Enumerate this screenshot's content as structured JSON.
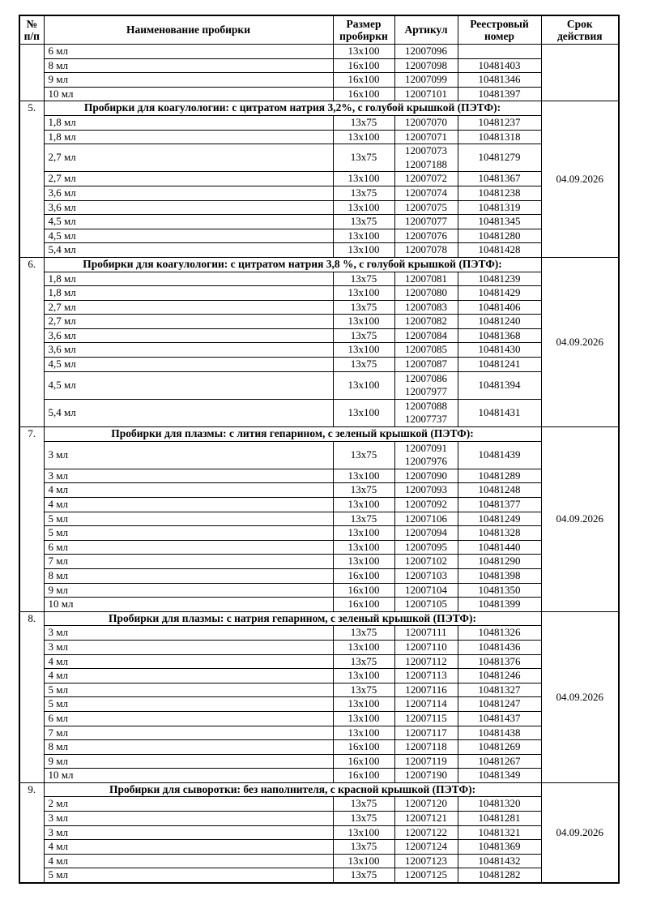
{
  "colors": {
    "background": "#ffffff",
    "text": "#000000",
    "border": "#000000"
  },
  "table": {
    "columns": [
      {
        "key": "num",
        "label": "№\nп/п"
      },
      {
        "key": "name",
        "label": "Наименование пробирки"
      },
      {
        "key": "size",
        "label": "Размер\nпробирки"
      },
      {
        "key": "article",
        "label": "Артикул"
      },
      {
        "key": "reg",
        "label": "Реестровый\nномер"
      },
      {
        "key": "validity",
        "label": "Срок\nдействия"
      }
    ],
    "sections": [
      {
        "number": "",
        "title": null,
        "validity": "",
        "rows": [
          {
            "name": "6 мл",
            "size": "13x100",
            "articles": [
              "12007096"
            ],
            "reg": ""
          },
          {
            "name": "8 мл",
            "size": "16x100",
            "articles": [
              "12007098"
            ],
            "reg": "10481403"
          },
          {
            "name": "9 мл",
            "size": "16x100",
            "articles": [
              "12007099"
            ],
            "reg": "10481346"
          },
          {
            "name": "10 мл",
            "size": "16x100",
            "articles": [
              "12007101"
            ],
            "reg": "10481397"
          }
        ]
      },
      {
        "number": "5.",
        "title": "Пробирки для коагулологии: с цитратом натрия 3,2%, с голубой крышкой (ПЭТФ):",
        "validity": "04.09.2026",
        "rows": [
          {
            "name": "1,8 мл",
            "size": "13x75",
            "articles": [
              "12007070"
            ],
            "reg": "10481237"
          },
          {
            "name": "1,8 мл",
            "size": "13x100",
            "articles": [
              "12007071"
            ],
            "reg": "10481318"
          },
          {
            "name": "2,7 мл",
            "size": "13x75",
            "articles": [
              "12007073",
              "12007188"
            ],
            "reg": "10481279"
          },
          {
            "name": "2,7 мл",
            "size": "13x100",
            "articles": [
              "12007072"
            ],
            "reg": "10481367"
          },
          {
            "name": "3,6 мл",
            "size": "13x75",
            "articles": [
              "12007074"
            ],
            "reg": "10481238"
          },
          {
            "name": "3,6 мл",
            "size": "13x100",
            "articles": [
              "12007075"
            ],
            "reg": "10481319"
          },
          {
            "name": "4,5 мл",
            "size": "13x75",
            "articles": [
              "12007077"
            ],
            "reg": "10481345"
          },
          {
            "name": "4,5 мл",
            "size": "13x100",
            "articles": [
              "12007076"
            ],
            "reg": "10481280"
          },
          {
            "name": "5,4 мл",
            "size": "13x100",
            "articles": [
              "12007078"
            ],
            "reg": "10481428"
          }
        ]
      },
      {
        "number": "6.",
        "title": "Пробирки для коагулологии: с цитратом натрия 3,8 %, с голубой крышкой (ПЭТФ):",
        "validity": "04.09.2026",
        "rows": [
          {
            "name": "1,8 мл",
            "size": "13x75",
            "articles": [
              "12007081"
            ],
            "reg": "10481239"
          },
          {
            "name": "1,8 мл",
            "size": "13x100",
            "articles": [
              "12007080"
            ],
            "reg": "10481429"
          },
          {
            "name": "2,7 мл",
            "size": "13x75",
            "articles": [
              "12007083"
            ],
            "reg": "10481406"
          },
          {
            "name": "2,7 мл",
            "size": "13x100",
            "articles": [
              "12007082"
            ],
            "reg": "10481240"
          },
          {
            "name": "3,6 мл",
            "size": "13x75",
            "articles": [
              "12007084"
            ],
            "reg": "10481368"
          },
          {
            "name": "3,6 мл",
            "size": "13x100",
            "articles": [
              "12007085"
            ],
            "reg": "10481430"
          },
          {
            "name": "4,5 мл",
            "size": "13x75",
            "articles": [
              "12007087"
            ],
            "reg": "10481241"
          },
          {
            "name": "4,5 мл",
            "size": "13x100",
            "articles": [
              "12007086",
              "12007977"
            ],
            "reg": "10481394"
          },
          {
            "name": "5,4 мл",
            "size": "13x100",
            "articles": [
              "12007088",
              "12007737"
            ],
            "reg": "10481431"
          }
        ]
      },
      {
        "number": "7.",
        "title": "Пробирки для плазмы: с лития гепарином, с зеленый крышкой (ПЭТФ):",
        "validity": "04.09.2026",
        "rows": [
          {
            "name": "3 мл",
            "size": "13x75",
            "articles": [
              "12007091",
              "12007976"
            ],
            "reg": "10481439"
          },
          {
            "name": "3 мл",
            "size": "13x100",
            "articles": [
              "12007090"
            ],
            "reg": "10481289"
          },
          {
            "name": "4 мл",
            "size": "13x75",
            "articles": [
              "12007093"
            ],
            "reg": "10481248"
          },
          {
            "name": "4 мл",
            "size": "13x100",
            "articles": [
              "12007092"
            ],
            "reg": "10481377"
          },
          {
            "name": "5 мл",
            "size": "13x75",
            "articles": [
              "12007106"
            ],
            "reg": "10481249"
          },
          {
            "name": "5 мл",
            "size": "13x100",
            "articles": [
              "12007094"
            ],
            "reg": "10481328"
          },
          {
            "name": "6 мл",
            "size": "13x100",
            "articles": [
              "12007095"
            ],
            "reg": "10481440"
          },
          {
            "name": "7 мл",
            "size": "13x100",
            "articles": [
              "12007102"
            ],
            "reg": "10481290"
          },
          {
            "name": "8 мл",
            "size": "16x100",
            "articles": [
              "12007103"
            ],
            "reg": "10481398"
          },
          {
            "name": "9 мл",
            "size": "16x100",
            "articles": [
              "12007104"
            ],
            "reg": "10481350"
          },
          {
            "name": "10 мл",
            "size": "16x100",
            "articles": [
              "12007105"
            ],
            "reg": "10481399"
          }
        ]
      },
      {
        "number": "8.",
        "title": "Пробирки для плазмы: с натрия гепарином, с зеленый крышкой (ПЭТФ):",
        "validity": "04.09.2026",
        "rows": [
          {
            "name": "3 мл",
            "size": "13x75",
            "articles": [
              "12007111"
            ],
            "reg": "10481326"
          },
          {
            "name": "3 мл",
            "size": "13x100",
            "articles": [
              "12007110"
            ],
            "reg": "10481436"
          },
          {
            "name": "4 мл",
            "size": "13x75",
            "articles": [
              "12007112"
            ],
            "reg": "10481376"
          },
          {
            "name": "4 мл",
            "size": "13x100",
            "articles": [
              "12007113"
            ],
            "reg": "10481246"
          },
          {
            "name": "5 мл",
            "size": "13x75",
            "articles": [
              "12007116"
            ],
            "reg": "10481327"
          },
          {
            "name": "5 мл",
            "size": "13x100",
            "articles": [
              "12007114"
            ],
            "reg": "10481247"
          },
          {
            "name": "6 мл",
            "size": "13x100",
            "articles": [
              "12007115"
            ],
            "reg": "10481437"
          },
          {
            "name": "7 мл",
            "size": "13x100",
            "articles": [
              "12007117"
            ],
            "reg": "10481438"
          },
          {
            "name": "8 мл",
            "size": "16x100",
            "articles": [
              "12007118"
            ],
            "reg": "10481269"
          },
          {
            "name": "9 мл",
            "size": "16x100",
            "articles": [
              "12007119"
            ],
            "reg": "10481267"
          },
          {
            "name": "10 мл",
            "size": "16x100",
            "articles": [
              "12007190"
            ],
            "reg": "10481349"
          }
        ]
      },
      {
        "number": "9.",
        "title": "Пробирки для сыворотки: без наполнителя, с красной крышкой (ПЭТФ):",
        "validity": "04.09.2026",
        "rows": [
          {
            "name": "2 мл",
            "size": "13x75",
            "articles": [
              "12007120"
            ],
            "reg": "10481320"
          },
          {
            "name": "3 мл",
            "size": "13x75",
            "articles": [
              "12007121"
            ],
            "reg": "10481281"
          },
          {
            "name": "3 мл",
            "size": "13x100",
            "articles": [
              "12007122"
            ],
            "reg": "10481321"
          },
          {
            "name": "4 мл",
            "size": "13x75",
            "articles": [
              "12007124"
            ],
            "reg": "10481369"
          },
          {
            "name": "4 мл",
            "size": "13x100",
            "articles": [
              "12007123"
            ],
            "reg": "10481432"
          },
          {
            "name": "5 мл",
            "size": "13x75",
            "articles": [
              "12007125"
            ],
            "reg": "10481282"
          }
        ]
      }
    ]
  }
}
